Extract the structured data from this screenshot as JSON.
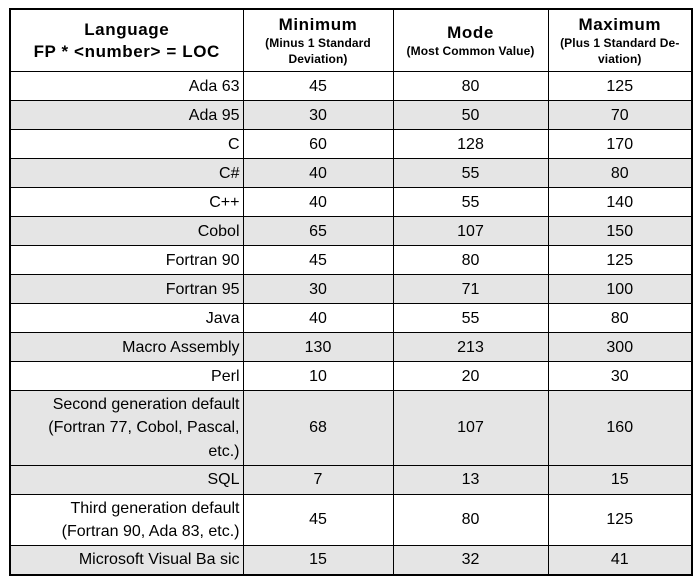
{
  "table": {
    "header": {
      "language": {
        "title": "Language\nFP * <number> = LOC"
      },
      "minimum": {
        "title": "Minimum",
        "subtitle": "(Minus 1 Standard\nDeviation)"
      },
      "mode": {
        "title": "Mode",
        "subtitle": "(Most Common Value)"
      },
      "maximum": {
        "title": "Maximum",
        "subtitle": "(Plus 1 Standard De-\nviation)"
      }
    },
    "rows": [
      {
        "language": "Ada 63",
        "minimum": 45,
        "mode": 80,
        "maximum": 125,
        "shaded": false
      },
      {
        "language": "Ada 95",
        "minimum": 30,
        "mode": 50,
        "maximum": 70,
        "shaded": true
      },
      {
        "language": "C",
        "minimum": 60,
        "mode": 128,
        "maximum": 170,
        "shaded": false
      },
      {
        "language": "C#",
        "minimum": 40,
        "mode": 55,
        "maximum": 80,
        "shaded": true
      },
      {
        "language": "C++",
        "minimum": 40,
        "mode": 55,
        "maximum": 140,
        "shaded": false
      },
      {
        "language": "Cobol",
        "minimum": 65,
        "mode": 107,
        "maximum": 150,
        "shaded": true
      },
      {
        "language": "Fortran 90",
        "minimum": 45,
        "mode": 80,
        "maximum": 125,
        "shaded": false
      },
      {
        "language": "Fortran 95",
        "minimum": 30,
        "mode": 71,
        "maximum": 100,
        "shaded": true
      },
      {
        "language": "Java",
        "minimum": 40,
        "mode": 55,
        "maximum": 80,
        "shaded": false
      },
      {
        "language": "Macro Assembly",
        "minimum": 130,
        "mode": 213,
        "maximum": 300,
        "shaded": true
      },
      {
        "language": "Perl",
        "minimum": 10,
        "mode": 20,
        "maximum": 30,
        "shaded": false
      },
      {
        "language": "Second generation default\n(Fortran 77, Cobol, Pascal,\netc.)",
        "minimum": 68,
        "mode": 107,
        "maximum": 160,
        "shaded": true
      },
      {
        "language": "SQL",
        "minimum": 7,
        "mode": 13,
        "maximum": 15,
        "shaded": true
      },
      {
        "language": "Third generation default\n(Fortran 90, Ada 83, etc.)",
        "minimum": 45,
        "mode": 80,
        "maximum": 125,
        "shaded": false
      },
      {
        "language": "Microsoft Visual Ba sic",
        "minimum": 15,
        "mode": 32,
        "maximum": 41,
        "shaded": true
      }
    ]
  },
  "colors": {
    "shaded_row": "#e5e5e5",
    "border": "#000000",
    "background": "#ffffff",
    "text": "#000000"
  }
}
